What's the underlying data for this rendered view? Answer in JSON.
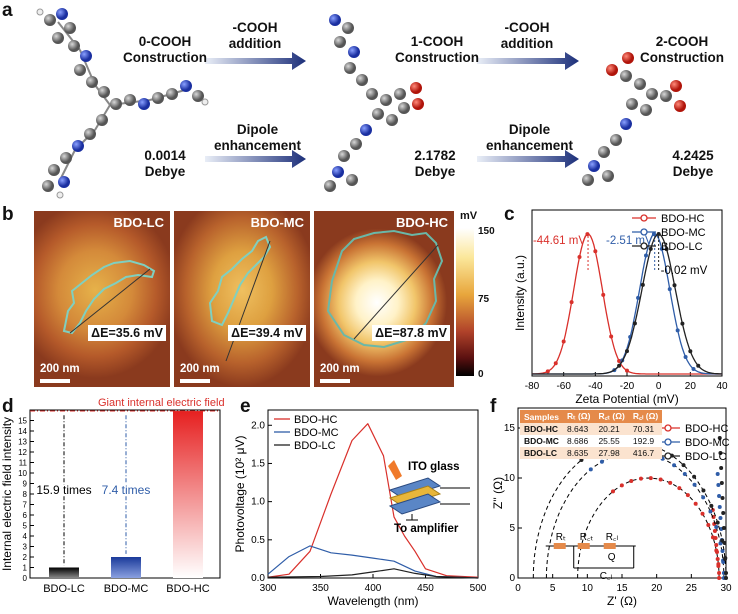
{
  "panel_labels": {
    "a": "a",
    "b": "b",
    "c": "c",
    "d": "d",
    "e": "e",
    "f": "f"
  },
  "panel_a": {
    "step0": {
      "title_line1": "0-COOH",
      "title_line2": "Construction",
      "dipole_value": "0.0014",
      "dipole_unit": "Debye"
    },
    "arrow1_top_line1": "-COOH",
    "arrow1_top_line2": "addition",
    "arrow1_bottom_line1": "Dipole",
    "arrow1_bottom_line2": "enhancement",
    "step1": {
      "title_line1": "1-COOH",
      "title_line2": "Construction",
      "dipole_value": "2.1782",
      "dipole_unit": "Debye"
    },
    "arrow2_top_line1": "-COOH",
    "arrow2_top_line2": "addition",
    "arrow2_bottom_line1": "Dipole",
    "arrow2_bottom_line2": "enhancement",
    "step2": {
      "title_line1": "2-COOH",
      "title_line2": "Construction",
      "dipole_value": "4.2425",
      "dipole_unit": "Debye"
    }
  },
  "panel_b": {
    "maps": [
      {
        "label": "BDO-LC",
        "delta_e": "ΔE=35.6 mV",
        "scale": "200 nm"
      },
      {
        "label": "BDO-MC",
        "delta_e": "ΔE=39.4 mV",
        "scale": "200 nm"
      },
      {
        "label": "BDO-HC",
        "delta_e": "ΔE=87.8 mV",
        "scale": "200 nm"
      }
    ],
    "colorbar": {
      "unit": "mV",
      "ticks": [
        "150",
        "75",
        "0"
      ]
    }
  },
  "colors": {
    "hc": "#d9302b",
    "mc": "#2f5da8",
    "lc": "#222222"
  },
  "chart_data": [
    {
      "id": "c",
      "type": "line",
      "xlabel": "Zeta Potential (mV)",
      "ylabel": "Intensity (a.u.)",
      "xlim": [
        -80,
        40
      ],
      "xticks": [
        "-80",
        "-60",
        "-40",
        "-20",
        "0",
        "20",
        "40"
      ],
      "legend": [
        "BDO-HC",
        "BDO-MC",
        "BDO-LC"
      ],
      "annotations": [
        "-44.61 mV",
        "-2.51 mV",
        "-0.02 mV"
      ],
      "series": [
        {
          "name": "BDO-HC",
          "peak": -44.61
        },
        {
          "name": "BDO-MC",
          "peak": -2.51
        },
        {
          "name": "BDO-LC",
          "peak": -0.02
        }
      ]
    },
    {
      "id": "d",
      "type": "bar",
      "ylabel": "Internal electric field intensity",
      "categories": [
        "BDO-LC",
        "BDO-MC",
        "BDO-HC"
      ],
      "values": [
        1,
        2,
        15.9
      ],
      "ylim": [
        0,
        16
      ],
      "yticks": [
        "0",
        "1",
        "2",
        "3",
        "4",
        "5",
        "6",
        "7",
        "8",
        "9",
        "10",
        "11",
        "12",
        "13",
        "14",
        "15"
      ],
      "title": "Giant internal electric field",
      "annotations": [
        "15.9 times",
        "7.4 times"
      ]
    },
    {
      "id": "e",
      "type": "line",
      "xlabel": "Wavelength (nm)",
      "ylabel": "Photovoltage (10² μV)",
      "xlim": [
        300,
        500
      ],
      "ylim": [
        0,
        2.2
      ],
      "xticks": [
        "300",
        "350",
        "400",
        "450",
        "500"
      ],
      "yticks": [
        "0.0",
        "0.5",
        "1.0",
        "1.5",
        "2.0"
      ],
      "legend": [
        "BDO-HC",
        "BDO-MC",
        "BDO-LC"
      ],
      "inset_labels": [
        "ITO glass",
        "To amplifier"
      ],
      "series": [
        {
          "name": "BDO-HC",
          "x": [
            300,
            320,
            340,
            360,
            380,
            395,
            410,
            420,
            430,
            440,
            450,
            470,
            500
          ],
          "values": [
            0.01,
            0.05,
            0.35,
            1.1,
            1.8,
            2.02,
            1.6,
            0.8,
            0.55,
            0.35,
            0.12,
            0.03,
            0.01
          ]
        },
        {
          "name": "BDO-MC",
          "x": [
            300,
            320,
            340,
            360,
            380,
            400,
            420,
            440,
            460,
            480,
            500
          ],
          "values": [
            0.05,
            0.28,
            0.42,
            0.33,
            0.3,
            0.26,
            0.22,
            0.09,
            0.02,
            0.01,
            0.0
          ]
        },
        {
          "name": "BDO-LC",
          "x": [
            300,
            350,
            380,
            400,
            420,
            440,
            460,
            500
          ],
          "values": [
            0.01,
            0.02,
            0.04,
            0.08,
            0.12,
            0.06,
            0.02,
            0.0
          ]
        }
      ]
    },
    {
      "id": "f",
      "type": "scatter",
      "xlabel": "Z' (Ω)",
      "ylabel": "Z'' (Ω)",
      "xlim": [
        0,
        30
      ],
      "ylim": [
        0,
        17
      ],
      "xticks": [
        "0",
        "5",
        "10",
        "15",
        "20",
        "25",
        "30"
      ],
      "yticks": [
        "0",
        "5",
        "10",
        "15"
      ],
      "legend": [
        "BDO-HC",
        "BDO-MC",
        "BDO-LC"
      ],
      "table": {
        "headers": [
          "Samples",
          "Rₜ (Ω)",
          "R꜀ₜ (Ω)",
          "R꜀ₗ (Ω)"
        ],
        "rows": [
          [
            "BDO-HC",
            "8.643",
            "20.21",
            "70.31"
          ],
          [
            "BDO-MC",
            "8.686",
            "25.55",
            "192.9"
          ],
          [
            "BDO-LC",
            "8.635",
            "27.98",
            "416.7"
          ]
        ]
      },
      "circuit_labels": [
        "Rₜ",
        "R꜀ₜ",
        "R꜀ₗ",
        "Q",
        "C꜀ₗ"
      ],
      "series": [
        {
          "name": "BDO-HC",
          "center": 18.8,
          "radius": 10.2
        },
        {
          "name": "BDO-MC",
          "center": 16.9,
          "radius": 12.8
        },
        {
          "name": "BDO-LC",
          "center": 16.1,
          "radius": 13.9
        }
      ]
    }
  ]
}
